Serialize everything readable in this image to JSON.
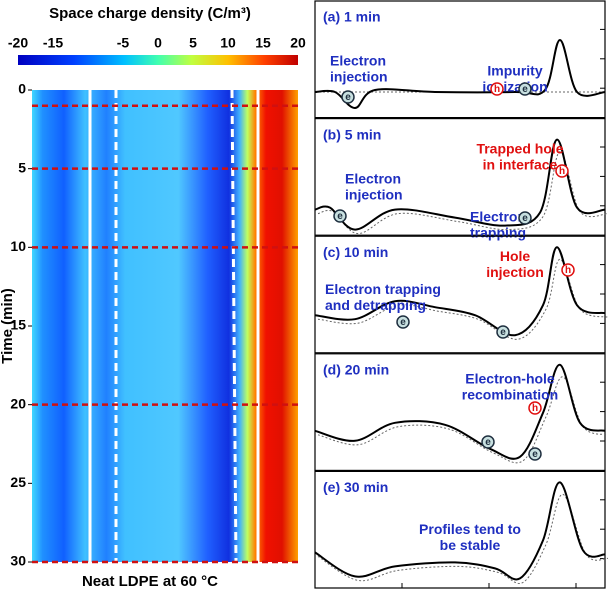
{
  "figure": {
    "colorbar": {
      "title": "Space charge density (C/m³)",
      "ticks": [
        -20,
        -15,
        -5,
        0,
        5,
        10,
        15,
        20
      ],
      "lim": [
        -20,
        20
      ]
    },
    "heatmap": {
      "ylabel": "Time (min)",
      "xlabel": "Neat LDPE at 60 °C",
      "ylim": [
        0,
        30
      ],
      "yticks": [
        0,
        5,
        10,
        15,
        20,
        25,
        30
      ],
      "marked_times": [
        1,
        5,
        10,
        20,
        30
      ]
    },
    "symbols": {
      "electron": "e",
      "hole": "h"
    },
    "panels": [
      {
        "label": "(a) 1 min",
        "annotations": [
          {
            "lines": [
              "Electron",
              "injection"
            ],
            "color": "#1f2fc0"
          },
          {
            "lines": [
              "Impurity",
              "ionization"
            ],
            "color": "#1f2fc0"
          }
        ]
      },
      {
        "label": "(b) 5 min",
        "annotations": [
          {
            "lines": [
              "Electron",
              "injection"
            ],
            "color": "#1f2fc0"
          },
          {
            "lines": [
              "Trapped hole",
              "in interface"
            ],
            "color": "#e01010"
          },
          {
            "lines": [
              "Electron",
              "trapping"
            ],
            "color": "#1f2fc0"
          }
        ]
      },
      {
        "label": "(c) 10 min",
        "annotations": [
          {
            "lines": [
              "Hole",
              "injection"
            ],
            "color": "#e01010"
          },
          {
            "lines": [
              "Electron trapping",
              "and detrapping"
            ],
            "color": "#1f2fc0"
          }
        ]
      },
      {
        "label": "(d) 20 min",
        "annotations": [
          {
            "lines": [
              "Electron-hole",
              "recombination"
            ],
            "color": "#1f2fc0"
          }
        ]
      },
      {
        "label": "(e) 30 min",
        "annotations": [
          {
            "lines": [
              "Profiles tend to",
              "be stable"
            ],
            "color": "#1f2fc0"
          }
        ]
      }
    ]
  }
}
